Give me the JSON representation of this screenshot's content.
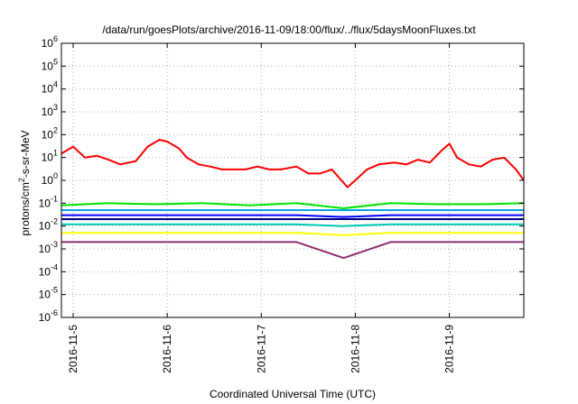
{
  "chart_data": {
    "type": "line",
    "title": "/data/run/goesPlots/archive/2016-11-09/18:00/flux/../flux/5daysMoonFluxes.txt",
    "xlabel": "Coordinated Universal Time (UTC)",
    "ylabel": "protons/cm²-s-sr-MeV",
    "y_scale": "log",
    "ylim": [
      1e-06,
      1000000.0
    ],
    "xlim": [
      "2016-11-04T21:00",
      "2016-11-09T19:00"
    ],
    "grid": true,
    "legend": "none",
    "x_ticks": [
      "2016-11-5",
      "2016-11-6",
      "2016-11-7",
      "2016-11-8",
      "2016-11-9"
    ],
    "x_tick_dates": [
      "2016-11-05T00:00",
      "2016-11-06T00:00",
      "2016-11-07T00:00",
      "2016-11-08T00:00",
      "2016-11-09T00:00"
    ],
    "y_ticks": [
      {
        "base": "10",
        "exp": "-6",
        "value": 1e-06
      },
      {
        "base": "10",
        "exp": "-5",
        "value": 1e-05
      },
      {
        "base": "10",
        "exp": "-4",
        "value": 0.0001
      },
      {
        "base": "10",
        "exp": "-3",
        "value": 0.001
      },
      {
        "base": "10",
        "exp": "-2",
        "value": 0.01
      },
      {
        "base": "10",
        "exp": "-1",
        "value": 0.1
      },
      {
        "base": "10",
        "exp": "0",
        "value": 1
      },
      {
        "base": "10",
        "exp": "1",
        "value": 10
      },
      {
        "base": "10",
        "exp": "2",
        "value": 100
      },
      {
        "base": "10",
        "exp": "3",
        "value": 1000
      },
      {
        "base": "10",
        "exp": "4",
        "value": 10000
      },
      {
        "base": "10",
        "exp": "5",
        "value": 100000
      },
      {
        "base": "10",
        "exp": "6",
        "value": 1000000
      }
    ],
    "series": [
      {
        "color": "#ff0000",
        "values": [
          [
            "2016-11-04T21:00",
            15
          ],
          [
            "2016-11-05T00:00",
            30
          ],
          [
            "2016-11-05T03:00",
            10
          ],
          [
            "2016-11-05T06:00",
            12
          ],
          [
            "2016-11-05T09:00",
            8
          ],
          [
            "2016-11-05T12:00",
            5
          ],
          [
            "2016-11-05T16:00",
            7
          ],
          [
            "2016-11-05T19:00",
            30
          ],
          [
            "2016-11-05T22:00",
            60
          ],
          [
            "2016-11-06T00:00",
            50
          ],
          [
            "2016-11-06T03:00",
            25
          ],
          [
            "2016-11-06T05:00",
            10
          ],
          [
            "2016-11-06T08:00",
            5
          ],
          [
            "2016-11-06T11:00",
            4
          ],
          [
            "2016-11-06T14:00",
            3
          ],
          [
            "2016-11-06T17:00",
            3
          ],
          [
            "2016-11-06T20:00",
            3
          ],
          [
            "2016-11-06T23:00",
            4
          ],
          [
            "2016-11-07T02:00",
            3
          ],
          [
            "2016-11-07T05:00",
            3
          ],
          [
            "2016-11-07T09:00",
            4
          ],
          [
            "2016-11-07T12:00",
            2
          ],
          [
            "2016-11-07T15:00",
            2
          ],
          [
            "2016-11-07T18:00",
            3
          ],
          [
            "2016-11-07T22:00",
            0.5
          ],
          [
            "2016-11-08T00:00",
            1
          ],
          [
            "2016-11-08T03:00",
            3
          ],
          [
            "2016-11-08T06:00",
            5
          ],
          [
            "2016-11-08T10:00",
            6
          ],
          [
            "2016-11-08T13:00",
            5
          ],
          [
            "2016-11-08T16:00",
            8
          ],
          [
            "2016-11-08T19:00",
            6
          ],
          [
            "2016-11-08T22:00",
            20
          ],
          [
            "2016-11-09T00:00",
            40
          ],
          [
            "2016-11-09T02:00",
            10
          ],
          [
            "2016-11-09T05:00",
            5
          ],
          [
            "2016-11-09T08:00",
            4
          ],
          [
            "2016-11-09T11:00",
            8
          ],
          [
            "2016-11-09T14:00",
            10
          ],
          [
            "2016-11-09T17:00",
            3
          ],
          [
            "2016-11-09T19:00",
            1
          ]
        ]
      },
      {
        "color": "#00e400",
        "values": [
          [
            "2016-11-04T21:00",
            0.08
          ],
          [
            "2016-11-05T09:00",
            0.1
          ],
          [
            "2016-11-05T21:00",
            0.09
          ],
          [
            "2016-11-06T09:00",
            0.1
          ],
          [
            "2016-11-06T21:00",
            0.08
          ],
          [
            "2016-11-07T09:00",
            0.1
          ],
          [
            "2016-11-07T21:00",
            0.06
          ],
          [
            "2016-11-08T09:00",
            0.1
          ],
          [
            "2016-11-08T21:00",
            0.09
          ],
          [
            "2016-11-09T09:00",
            0.09
          ],
          [
            "2016-11-09T19:00",
            0.1
          ]
        ]
      },
      {
        "color": "#00a5e8",
        "values": [
          [
            "2016-11-04T21:00",
            0.05
          ],
          [
            "2016-11-05T09:00",
            0.05
          ],
          [
            "2016-11-05T21:00",
            0.05
          ],
          [
            "2016-11-06T09:00",
            0.05
          ],
          [
            "2016-11-06T21:00",
            0.05
          ],
          [
            "2016-11-07T09:00",
            0.05
          ],
          [
            "2016-11-07T21:00",
            0.05
          ],
          [
            "2016-11-08T09:00",
            0.05
          ],
          [
            "2016-11-08T21:00",
            0.05
          ],
          [
            "2016-11-09T09:00",
            0.05
          ],
          [
            "2016-11-09T19:00",
            0.05
          ]
        ]
      },
      {
        "color": "#0000ff",
        "values": [
          [
            "2016-11-04T21:00",
            0.03
          ],
          [
            "2016-11-05T09:00",
            0.03
          ],
          [
            "2016-11-05T21:00",
            0.03
          ],
          [
            "2016-11-06T09:00",
            0.03
          ],
          [
            "2016-11-06T21:00",
            0.03
          ],
          [
            "2016-11-07T09:00",
            0.03
          ],
          [
            "2016-11-07T21:00",
            0.025
          ],
          [
            "2016-11-08T09:00",
            0.03
          ],
          [
            "2016-11-08T21:00",
            0.03
          ],
          [
            "2016-11-09T09:00",
            0.03
          ],
          [
            "2016-11-09T19:00",
            0.03
          ]
        ]
      },
      {
        "color": "#000080",
        "values": [
          [
            "2016-11-04T21:00",
            0.02
          ],
          [
            "2016-11-05T09:00",
            0.02
          ],
          [
            "2016-11-05T21:00",
            0.02
          ],
          [
            "2016-11-06T09:00",
            0.02
          ],
          [
            "2016-11-06T21:00",
            0.02
          ],
          [
            "2016-11-07T09:00",
            0.02
          ],
          [
            "2016-11-07T21:00",
            0.02
          ],
          [
            "2016-11-08T09:00",
            0.02
          ],
          [
            "2016-11-08T21:00",
            0.02
          ],
          [
            "2016-11-09T09:00",
            0.02
          ],
          [
            "2016-11-09T19:00",
            0.02
          ]
        ]
      },
      {
        "color": "#00c8b4",
        "values": [
          [
            "2016-11-04T21:00",
            0.012
          ],
          [
            "2016-11-05T09:00",
            0.012
          ],
          [
            "2016-11-05T21:00",
            0.012
          ],
          [
            "2016-11-06T09:00",
            0.012
          ],
          [
            "2016-11-06T21:00",
            0.012
          ],
          [
            "2016-11-07T09:00",
            0.012
          ],
          [
            "2016-11-07T21:00",
            0.01
          ],
          [
            "2016-11-08T09:00",
            0.012
          ],
          [
            "2016-11-08T21:00",
            0.012
          ],
          [
            "2016-11-09T09:00",
            0.012
          ],
          [
            "2016-11-09T19:00",
            0.012
          ]
        ]
      },
      {
        "color": "#ffff00",
        "values": [
          [
            "2016-11-04T21:00",
            0.005
          ],
          [
            "2016-11-05T09:00",
            0.005
          ],
          [
            "2016-11-05T21:00",
            0.005
          ],
          [
            "2016-11-06T09:00",
            0.005
          ],
          [
            "2016-11-06T21:00",
            0.005
          ],
          [
            "2016-11-07T09:00",
            0.005
          ],
          [
            "2016-11-07T21:00",
            0.004
          ],
          [
            "2016-11-08T09:00",
            0.005
          ],
          [
            "2016-11-08T21:00",
            0.005
          ],
          [
            "2016-11-09T09:00",
            0.005
          ],
          [
            "2016-11-09T19:00",
            0.005
          ]
        ]
      },
      {
        "color": "#8b2f6e",
        "values": [
          [
            "2016-11-04T21:00",
            0.002
          ],
          [
            "2016-11-05T09:00",
            0.002
          ],
          [
            "2016-11-05T21:00",
            0.002
          ],
          [
            "2016-11-06T09:00",
            0.002
          ],
          [
            "2016-11-06T21:00",
            0.002
          ],
          [
            "2016-11-07T09:00",
            0.002
          ],
          [
            "2016-11-07T21:00",
            0.0004
          ],
          [
            "2016-11-08T09:00",
            0.002
          ],
          [
            "2016-11-08T21:00",
            0.002
          ],
          [
            "2016-11-09T09:00",
            0.002
          ],
          [
            "2016-11-09T19:00",
            0.002
          ]
        ]
      }
    ]
  }
}
